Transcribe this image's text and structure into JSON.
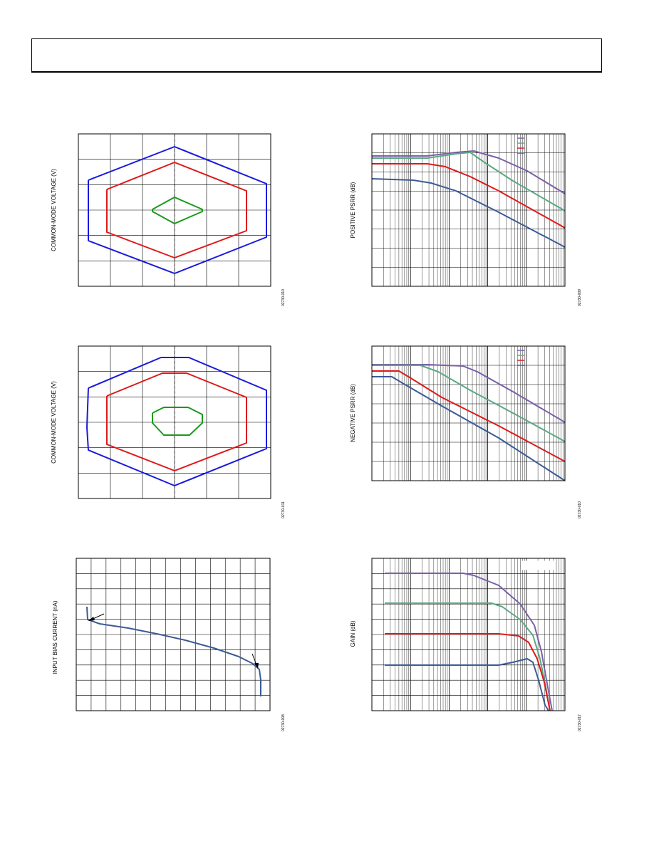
{
  "chart_data": [
    {
      "type": "line",
      "ylabel": "COMMON-MODE VOLTAGE (V)",
      "figure_id": "02730-010",
      "series": [
        {
          "color": "#1a1adc",
          "points": [
            [
              0,
              0.47
            ],
            [
              0.5,
              0.9
            ],
            [
              1,
              0.47
            ],
            [
              1,
              -0.37
            ],
            [
              0.5,
              -0.9
            ],
            [
              0,
              -0.37
            ]
          ]
        },
        {
          "color": "#dc1a1a",
          "points": [
            [
              0,
              0.16
            ],
            [
              0.5,
              0.48
            ],
            [
              1,
              0.16
            ],
            [
              1,
              -0.14
            ],
            [
              0.5,
              -0.46
            ],
            [
              0,
              -0.14
            ]
          ]
        },
        {
          "color": "#1a9a1a",
          "points": [
            [
              0,
              0
            ],
            [
              0.5,
              0.5
            ],
            [
              1,
              0
            ],
            [
              1,
              0
            ],
            [
              0.5,
              -0.5
            ],
            [
              0,
              0
            ]
          ]
        }
      ]
    },
    {
      "type": "line",
      "ylabel": "POSITIVE PSRR (dB)",
      "figure_id": "02730-009",
      "series": [
        {
          "color": "#7a5fa8"
        },
        {
          "color": "#5aa882"
        },
        {
          "color": "#dc1a1a"
        },
        {
          "color": "#3c5a96"
        }
      ]
    },
    {
      "type": "line",
      "ylabel": "COMMON-MODE VOLTAGE (V)",
      "figure_id": "02730-011",
      "series": [
        {
          "color": "#1a1adc"
        },
        {
          "color": "#dc1a1a"
        },
        {
          "color": "#1a9a1a"
        }
      ]
    },
    {
      "type": "line",
      "ylabel": "NEGATIVE PSRR (dB)",
      "figure_id": "02730-010",
      "series": [
        {
          "color": "#7a5fa8"
        },
        {
          "color": "#5aa882"
        },
        {
          "color": "#dc1a1a"
        },
        {
          "color": "#3c5a96"
        }
      ]
    },
    {
      "type": "line",
      "ylabel": "INPUT BIAS CURRENT (nA)",
      "figure_id": "02730-008",
      "series": [
        {
          "color": "#3c5a96"
        }
      ]
    },
    {
      "type": "line",
      "ylabel": "GAIN (dB)",
      "figure_id": "02730-017",
      "series": [
        {
          "color": "#7a5fa8"
        },
        {
          "color": "#5aa882"
        },
        {
          "color": "#dc1a1a"
        },
        {
          "color": "#3c5a96"
        }
      ]
    }
  ]
}
